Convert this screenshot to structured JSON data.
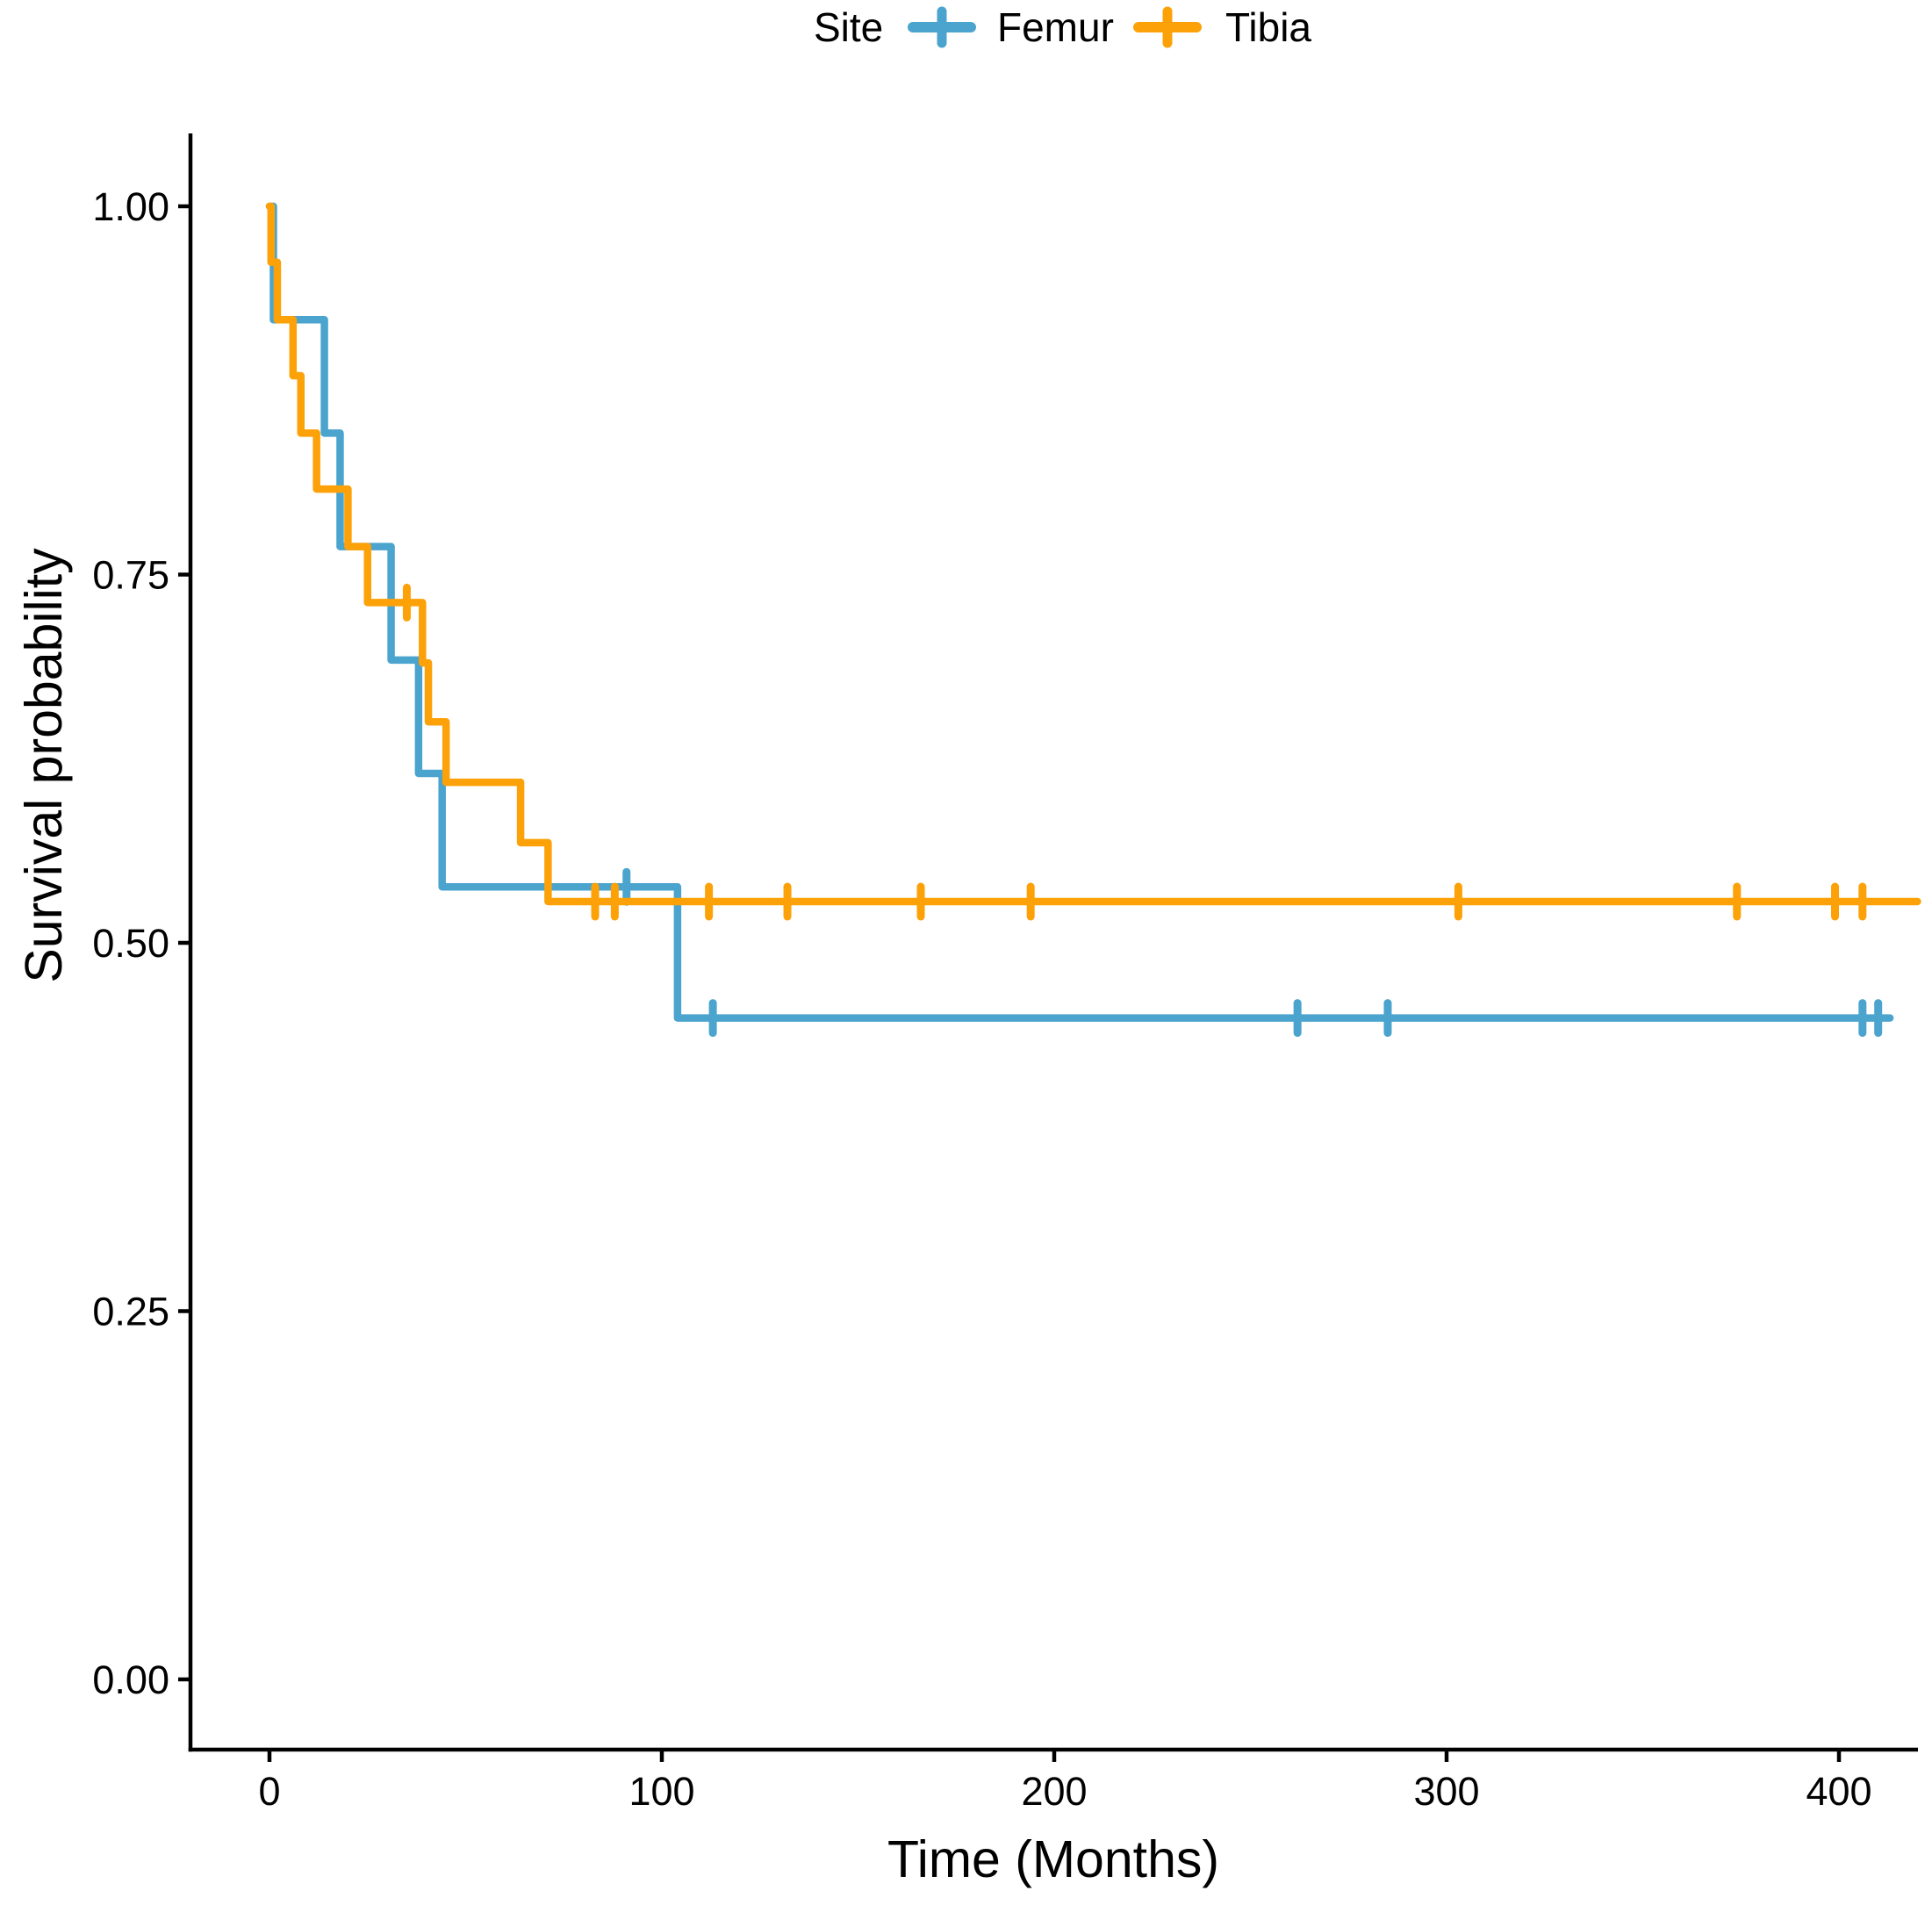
{
  "legend": {
    "title": "Site",
    "position": "top-center"
  },
  "chart_data": {
    "type": "line",
    "variant": "kaplan_meier_step_curve",
    "title": "",
    "legend_title": "Site",
    "xlabel": "Time (Months)",
    "ylabel": "Survival probability",
    "xlim": [
      0,
      420
    ],
    "ylim": [
      0,
      1
    ],
    "grid": false,
    "legend_position": "top-center",
    "x_ticks": [
      {
        "value": 0,
        "label": "0"
      },
      {
        "value": 100,
        "label": "100"
      },
      {
        "value": 200,
        "label": "200"
      },
      {
        "value": 300,
        "label": "300"
      },
      {
        "value": 400,
        "label": "400"
      }
    ],
    "y_ticks": [
      {
        "value": 0.0,
        "label": "0.00"
      },
      {
        "value": 0.25,
        "label": "0.25"
      },
      {
        "value": 0.5,
        "label": "0.50"
      },
      {
        "value": 0.75,
        "label": "0.75"
      },
      {
        "value": 1.0,
        "label": "1.00"
      }
    ],
    "series": [
      {
        "name": "Femur",
        "color": "#4BA4CE",
        "steps": [
          [
            0,
            1.0
          ],
          [
            1,
            0.923
          ],
          [
            14,
            0.846
          ],
          [
            18,
            0.769
          ],
          [
            31,
            0.692
          ],
          [
            38,
            0.615
          ],
          [
            44,
            0.538
          ],
          [
            104,
            0.449
          ]
        ],
        "end_time": 413,
        "censor_times": [
          91,
          113,
          262,
          285,
          406,
          410
        ]
      },
      {
        "name": "Tibia",
        "color": "#FCA108",
        "steps": [
          [
            0,
            1.0
          ],
          [
            0.4,
            0.962
          ],
          [
            2,
            0.923
          ],
          [
            6,
            0.885
          ],
          [
            8,
            0.846
          ],
          [
            12,
            0.808
          ],
          [
            20,
            0.769
          ],
          [
            25,
            0.731
          ],
          [
            39,
            0.69
          ],
          [
            40.5,
            0.65
          ],
          [
            45,
            0.609
          ],
          [
            64,
            0.568
          ],
          [
            71,
            0.528
          ]
        ],
        "end_time": 420,
        "censor_times": [
          35,
          83,
          88,
          112,
          132,
          166,
          194,
          303,
          374,
          399,
          406
        ]
      }
    ]
  }
}
